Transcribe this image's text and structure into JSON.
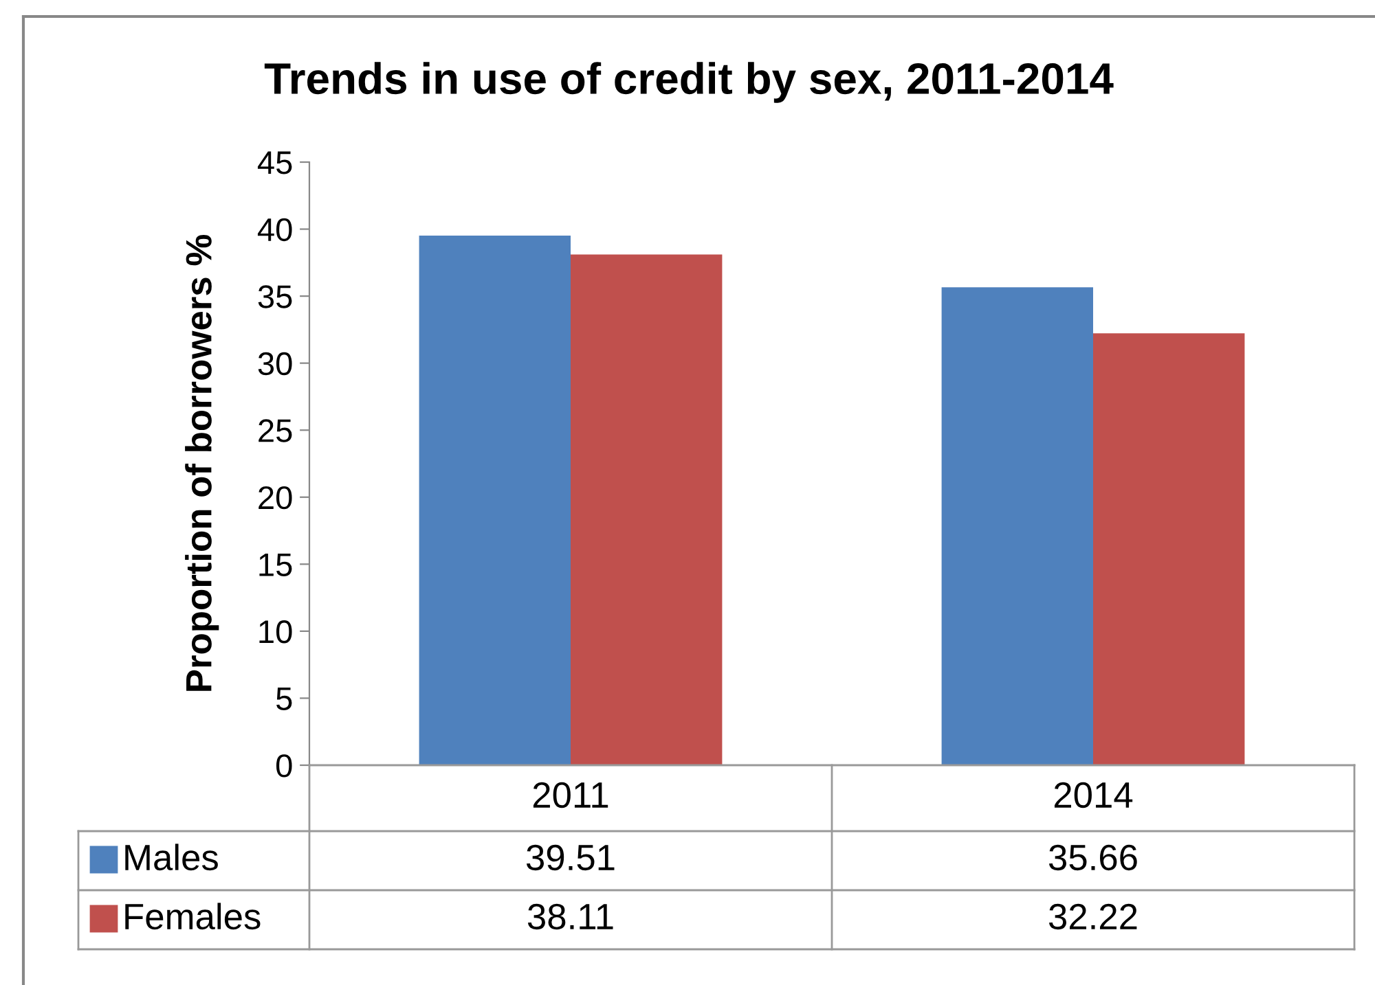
{
  "chart_data": {
    "type": "bar",
    "title": "Trends in use of credit by sex, 2011-2014",
    "ylabel": "Proportion of borrowers %",
    "categories": [
      "2011",
      "2014"
    ],
    "series": [
      {
        "name": "Males",
        "color": "#4f81bd",
        "values": [
          39.51,
          35.66
        ]
      },
      {
        "name": "Females",
        "color": "#c0504d",
        "values": [
          38.11,
          32.22
        ]
      }
    ],
    "ylim": [
      0,
      45
    ],
    "yticks": [
      0,
      5,
      10,
      15,
      20,
      25,
      30,
      35,
      40,
      45
    ],
    "grid": false,
    "legend": "bottom",
    "data_labels": true
  }
}
